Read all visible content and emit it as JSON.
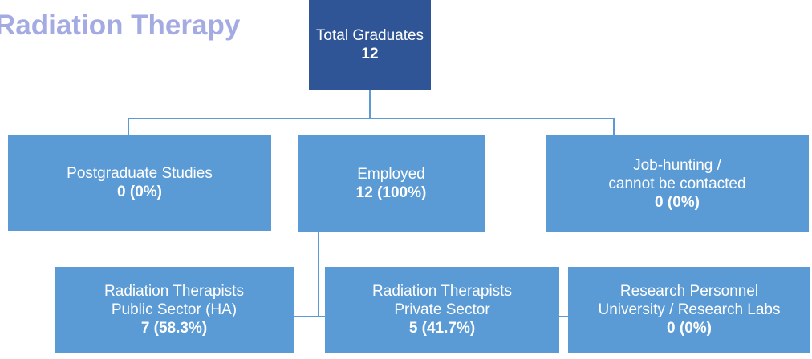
{
  "title": "Radiation Therapy",
  "nodes": [
    {
      "lines": [
        "Total Graduates"
      ],
      "value": "12"
    },
    {
      "lines": [
        "Postgraduate Studies"
      ],
      "value": "0 (0%)"
    },
    {
      "lines": [
        "Employed"
      ],
      "value": "12 (100%)"
    },
    {
      "lines": [
        "Job-hunting /",
        "cannot be contacted"
      ],
      "value": "0 (0%)"
    },
    {
      "lines": [
        "Radiation Therapists",
        "Public Sector (HA)"
      ],
      "value": "7 (58.3%)"
    },
    {
      "lines": [
        "Radiation Therapists",
        "Private Sector"
      ],
      "value": "5 (41.7%)"
    },
    {
      "lines": [
        "Research Personnel",
        "University / Research Labs"
      ],
      "value": "0 (0%)"
    }
  ]
}
